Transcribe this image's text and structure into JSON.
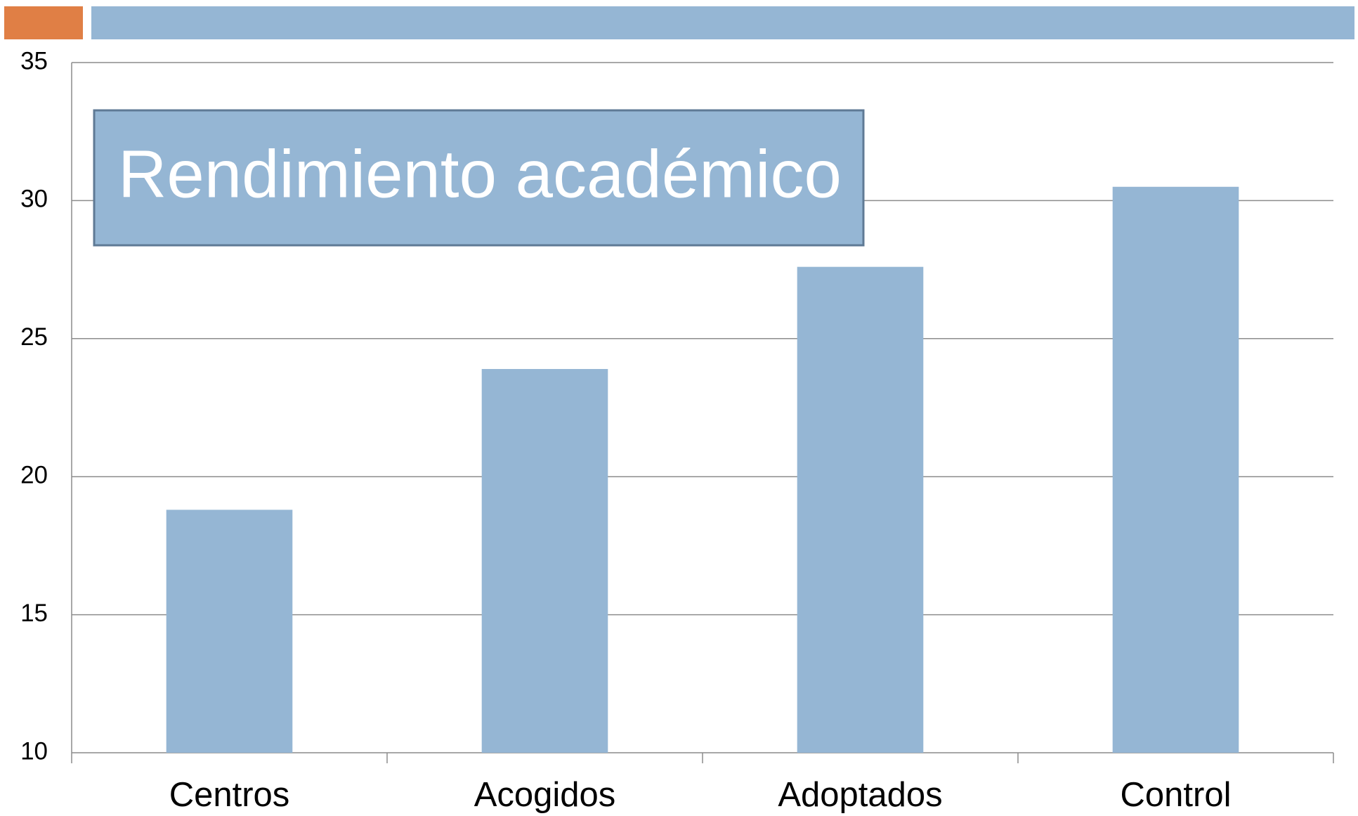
{
  "chart_data": {
    "type": "bar",
    "title": "Rendimiento académico",
    "categories": [
      "Centros",
      "Acogidos",
      "Adoptados",
      "Control"
    ],
    "values": [
      18.8,
      23.9,
      27.6,
      30.5
    ],
    "color": "#95b6d4",
    "ylim": [
      10,
      35
    ],
    "yticks": [
      10,
      15,
      20,
      25,
      30,
      35
    ],
    "grid": true
  }
}
